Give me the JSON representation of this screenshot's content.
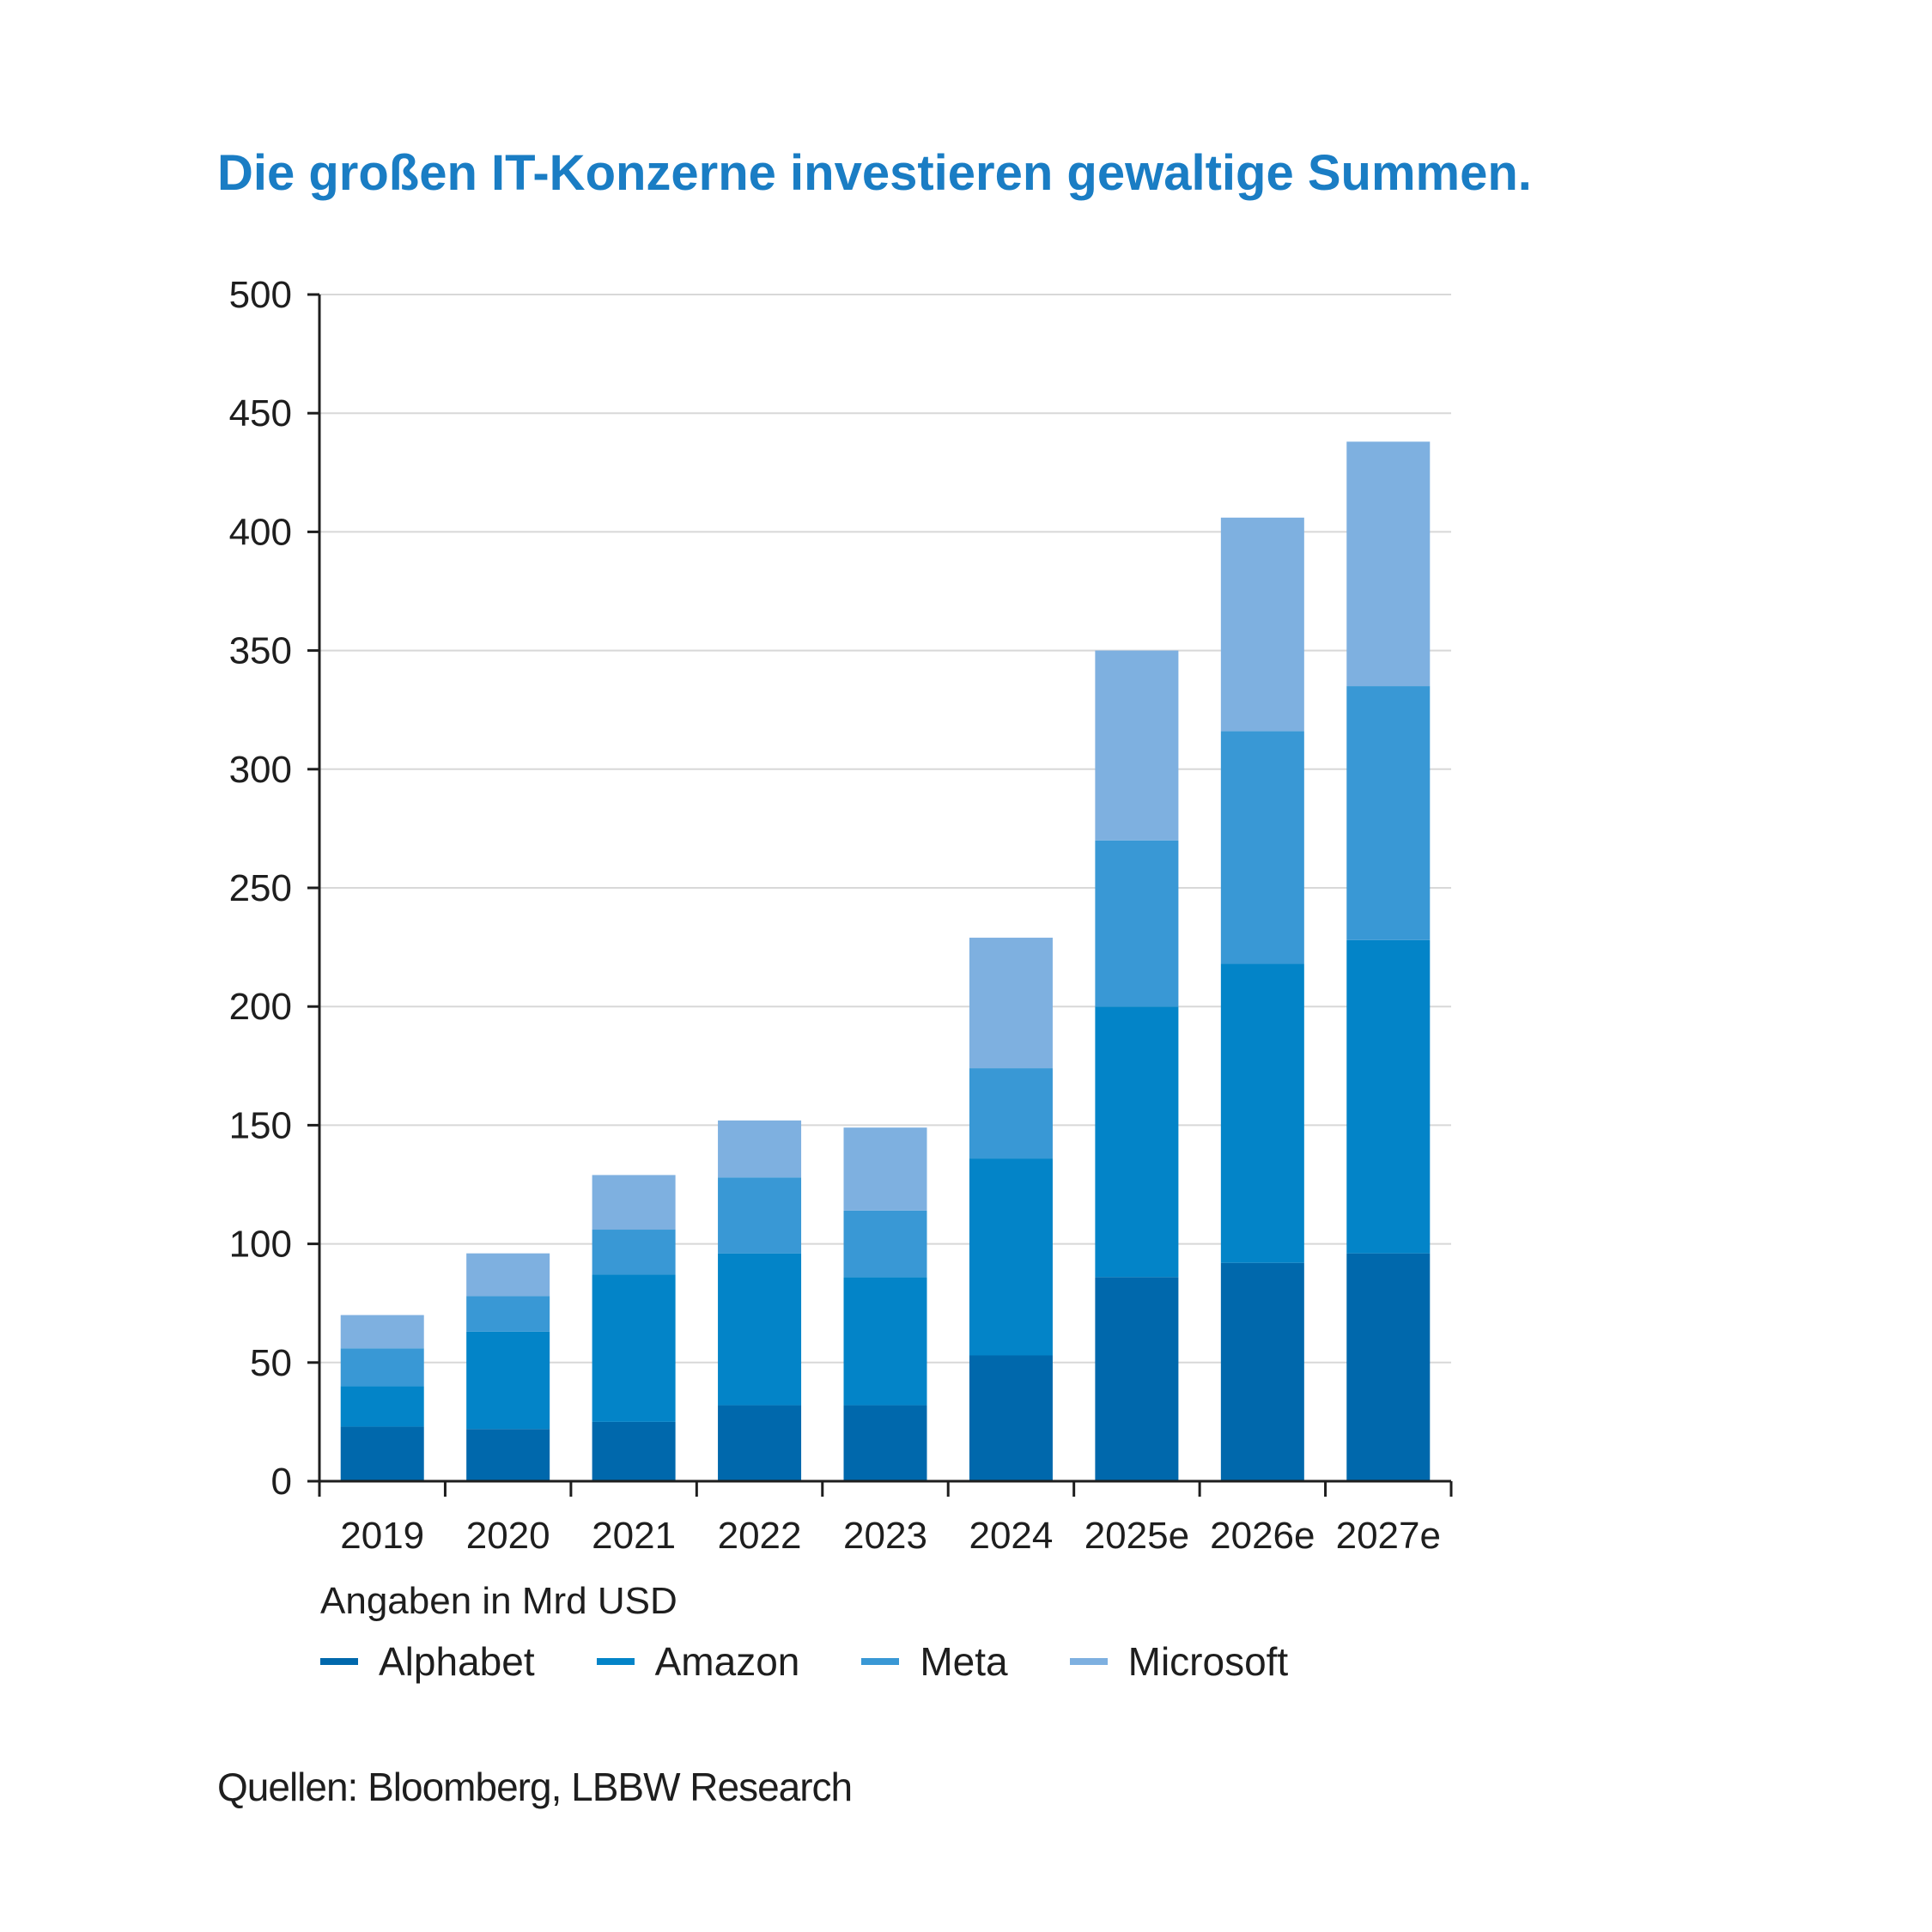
{
  "chart_data": {
    "type": "bar",
    "stacked": true,
    "title": "Die großen IT-Konzerne investieren gewaltige Summen.",
    "categories": [
      "2019",
      "2020",
      "2021",
      "2022",
      "2023",
      "2024",
      "2025e",
      "2026e",
      "2027e"
    ],
    "series": [
      {
        "name": "Alphabet",
        "color": "#0068ac",
        "values": [
          23,
          22,
          25,
          32,
          32,
          53,
          86,
          92,
          96
        ]
      },
      {
        "name": "Amazon",
        "color": "#0384c8",
        "values": [
          17,
          41,
          62,
          64,
          54,
          83,
          114,
          126,
          132
        ]
      },
      {
        "name": "Meta",
        "color": "#3998d5",
        "values": [
          16,
          15,
          19,
          32,
          28,
          38,
          70,
          98,
          107
        ]
      },
      {
        "name": "Microsoft",
        "color": "#7eb0e0",
        "values": [
          14,
          18,
          23,
          24,
          35,
          55,
          80,
          90,
          103
        ]
      }
    ],
    "ylim": [
      0,
      500
    ],
    "yticks": [
      0,
      50,
      100,
      150,
      200,
      250,
      300,
      350,
      400,
      450,
      500
    ],
    "grid": true,
    "legend": "bottom",
    "unit_note": "Angaben in Mrd USD"
  },
  "source": "Quellen: Bloomberg, LBBW Research"
}
